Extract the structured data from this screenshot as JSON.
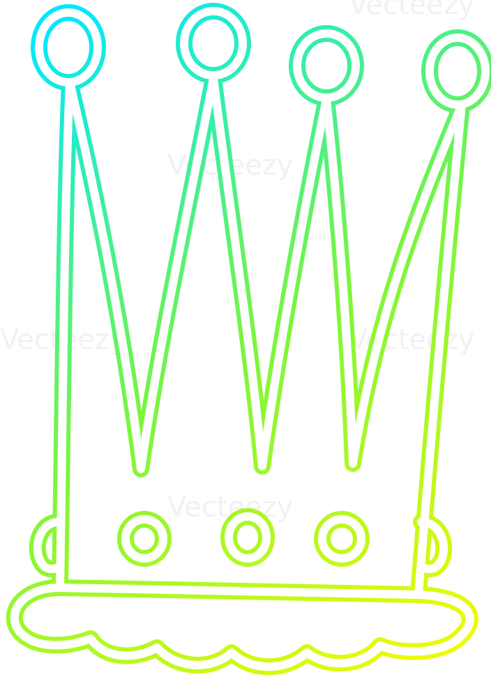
{
  "watermark": "Vecteezy"
}
